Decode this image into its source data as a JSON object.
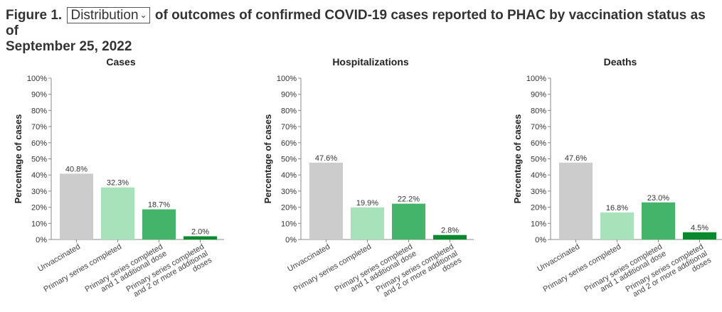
{
  "figure": {
    "prefix": "Figure 1.",
    "select_value": "Distribution",
    "chevron_icon": "chevron-down-icon",
    "suffix_line1": "of outcomes of confirmed COVID-19 cases reported to PHAC by vaccination status as of",
    "suffix_line2": "September 25, 2022"
  },
  "chart_data": [
    {
      "type": "bar",
      "title": "Cases",
      "ylabel": "Percentage of cases",
      "ylim": [
        0,
        100
      ],
      "yticks": [
        "0%",
        "10%",
        "20%",
        "30%",
        "40%",
        "50%",
        "60%",
        "70%",
        "80%",
        "90%",
        "100%"
      ],
      "categories": [
        [
          "Unvaccinated"
        ],
        [
          "Primary series completed"
        ],
        [
          "Primary series completed",
          "and 1 additional dose"
        ],
        [
          "Primary series completed",
          "and 2 or more additional",
          "doses"
        ]
      ],
      "values": [
        40.8,
        32.3,
        18.7,
        2.0
      ],
      "labels": [
        "40.8%",
        "32.3%",
        "18.7%",
        "2.0%"
      ]
    },
    {
      "type": "bar",
      "title": "Hospitalizations",
      "ylabel": "Percentage of cases",
      "ylim": [
        0,
        100
      ],
      "yticks": [
        "0%",
        "10%",
        "20%",
        "30%",
        "40%",
        "50%",
        "60%",
        "70%",
        "80%",
        "90%",
        "100%"
      ],
      "categories": [
        [
          "Unvaccinated"
        ],
        [
          "Primary series completed"
        ],
        [
          "Primary series completed",
          "and 1 additional dose"
        ],
        [
          "Primary series completed",
          "and 2 or more additional",
          "doses"
        ]
      ],
      "values": [
        47.6,
        19.9,
        22.2,
        2.8
      ],
      "labels": [
        "47.6%",
        "19.9%",
        "22.2%",
        "2.8%"
      ]
    },
    {
      "type": "bar",
      "title": "Deaths",
      "ylabel": "Percentage of cases",
      "ylim": [
        0,
        100
      ],
      "yticks": [
        "0%",
        "10%",
        "20%",
        "30%",
        "40%",
        "50%",
        "60%",
        "70%",
        "80%",
        "90%",
        "100%"
      ],
      "categories": [
        [
          "Unvaccinated"
        ],
        [
          "Primary series completed"
        ],
        [
          "Primary series completed",
          "and 1 additional dose"
        ],
        [
          "Primary series completed",
          "and 2 or more additional",
          "doses"
        ]
      ],
      "values": [
        47.6,
        16.8,
        23.0,
        4.5
      ],
      "labels": [
        "47.6%",
        "16.8%",
        "23.0%",
        "4.5%"
      ]
    }
  ],
  "colors": [
    "#cccccc",
    "#a8e2ba",
    "#44b46a",
    "#0a8a2e"
  ]
}
